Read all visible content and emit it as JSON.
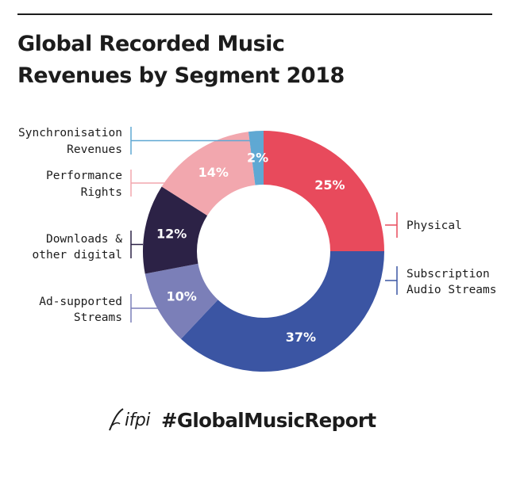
{
  "title_lines": [
    "Global Recorded Music",
    "Revenues by Segment 2018"
  ],
  "chart_data": {
    "type": "donut",
    "title": "Global Recorded Music Revenues by Segment 2018",
    "slices": [
      {
        "label_lines": [
          "Physical"
        ],
        "value": 25,
        "label": "25%",
        "color": "#e84a5c"
      },
      {
        "label_lines": [
          "Subscription",
          "Audio Streams"
        ],
        "value": 37,
        "label": "37%",
        "color": "#3b55a3"
      },
      {
        "label_lines": [
          "Ad-supported",
          "Streams"
        ],
        "value": 10,
        "label": "10%",
        "color": "#7b7fb8"
      },
      {
        "label_lines": [
          "Downloads &",
          "other digital"
        ],
        "value": 12,
        "label": "12%",
        "color": "#2c2246"
      },
      {
        "label_lines": [
          "Performance",
          "Rights"
        ],
        "value": 14,
        "label": "14%",
        "color": "#f2a7ae"
      },
      {
        "label_lines": [
          "Synchronisation",
          "Revenues"
        ],
        "value": 2,
        "label": "2%",
        "color": "#5fa8d3"
      }
    ],
    "legend_placement": "around-chart"
  },
  "footer": {
    "logo_text": "ifpi",
    "hashtag": "#GlobalMusicReport"
  }
}
